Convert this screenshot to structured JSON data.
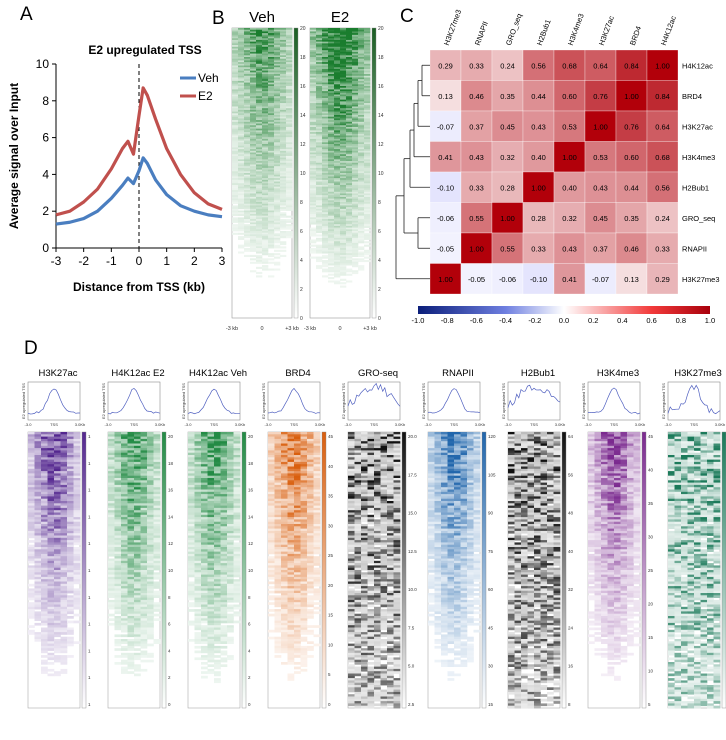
{
  "panels": {
    "a": "A",
    "b": "B",
    "c": "C",
    "d": "D"
  },
  "colors": {
    "veh": "#4a7ec0",
    "e2": "#c0504d"
  },
  "chart_data": [
    {
      "type": "line",
      "panel": "A",
      "title": "E2 upregulated TSS",
      "xlabel": "Distance from TSS (kb)",
      "ylabel": "Average signal over Input",
      "xlim": [
        -3,
        3
      ],
      "ylim": [
        0,
        10
      ],
      "xticks": [
        "-3",
        "-2",
        "-1",
        "0",
        "1",
        "2",
        "3"
      ],
      "yticks": [
        "0",
        "2",
        "4",
        "6",
        "8",
        "10"
      ],
      "x": [
        -3,
        -2.5,
        -2,
        -1.5,
        -1,
        -0.6,
        -0.4,
        -0.2,
        0,
        0.15,
        0.3,
        0.6,
        1,
        1.5,
        2,
        2.5,
        3
      ],
      "series": [
        {
          "name": "Veh",
          "color": "#4a7ec0",
          "values": [
            1.3,
            1.4,
            1.6,
            2.0,
            2.7,
            3.4,
            3.8,
            3.5,
            4.2,
            4.9,
            4.6,
            3.7,
            2.9,
            2.3,
            2.0,
            1.8,
            1.7
          ]
        },
        {
          "name": "E2",
          "color": "#c0504d",
          "values": [
            1.8,
            2.0,
            2.5,
            3.2,
            4.3,
            5.4,
            5.8,
            5.1,
            7.2,
            8.7,
            8.3,
            7.0,
            5.4,
            4.0,
            3.0,
            2.4,
            2.1
          ]
        }
      ],
      "legend": "top-right"
    },
    {
      "type": "heatmap",
      "panel": "B",
      "columns": [
        "Veh",
        "E2"
      ],
      "colorbar_ticks": [
        "20",
        "18",
        "16",
        "14",
        "12",
        "10",
        "8",
        "6",
        "4",
        "2",
        "0"
      ],
      "xticks": [
        "-3 kb",
        "0",
        "+3 kb"
      ]
    },
    {
      "type": "heatmap",
      "panel": "C",
      "columns": [
        "H3K27me3",
        "RNAPII",
        "GRO_seq",
        "H2Bub1",
        "H3K4me3",
        "H3K27ac",
        "BRD4",
        "H4K12ac"
      ],
      "rows": [
        "H4K12ac",
        "BRD4",
        "H3K27ac",
        "H3K4me3",
        "H2Bub1",
        "GRO_seq",
        "RNAPII",
        "H3K27me3"
      ],
      "values": [
        [
          0.29,
          0.33,
          0.24,
          0.56,
          0.68,
          0.64,
          0.84,
          1.0
        ],
        [
          0.13,
          0.46,
          0.35,
          0.44,
          0.6,
          0.76,
          1.0,
          0.84
        ],
        [
          -0.07,
          0.37,
          0.45,
          0.43,
          0.53,
          1.0,
          0.76,
          0.64
        ],
        [
          0.41,
          0.43,
          0.32,
          0.4,
          1.0,
          0.53,
          0.6,
          0.68
        ],
        [
          -0.1,
          0.33,
          0.28,
          1.0,
          0.4,
          0.43,
          0.44,
          0.56
        ],
        [
          -0.06,
          0.55,
          1.0,
          0.28,
          0.32,
          0.45,
          0.35,
          0.24
        ],
        [
          -0.05,
          1.0,
          0.55,
          0.33,
          0.43,
          0.37,
          0.46,
          0.33
        ],
        [
          1.0,
          -0.05,
          -0.06,
          -0.1,
          0.41,
          -0.07,
          0.13,
          0.29
        ]
      ],
      "colorbar_ticks": [
        "-1.0",
        "-0.8",
        "-0.6",
        "-0.4",
        "-0.2",
        "0.0",
        "0.2",
        "0.4",
        "0.6",
        "0.8",
        "1.0"
      ],
      "vmin": -1,
      "vmax": 1
    },
    {
      "type": "heatmap",
      "panel": "D",
      "profile_ylabel": "E2 upregulated TSS",
      "profile_xticks": [
        "-3.0",
        "TSS",
        "3.0Kb"
      ],
      "tracks": [
        {
          "title": "H3K27ac",
          "color": "#54278f",
          "cb_ticks": [
            "1",
            "1",
            "1",
            "1",
            "1",
            "1",
            "1",
            "1",
            "1",
            "1",
            "1"
          ]
        },
        {
          "title": "H4K12ac E2",
          "color": "#238b45",
          "cb_ticks": [
            "20",
            "18",
            "16",
            "14",
            "12",
            "10",
            "8",
            "6",
            "4",
            "2",
            "0"
          ]
        },
        {
          "title": "H4K12ac Veh",
          "color": "#238b45",
          "cb_ticks": [
            "20",
            "18",
            "16",
            "14",
            "12",
            "10",
            "8",
            "6",
            "4",
            "2",
            "0"
          ]
        },
        {
          "title": "BRD4",
          "color": "#d95f0e",
          "cb_ticks": [
            "45",
            "40",
            "35",
            "30",
            "25",
            "20",
            "15",
            "10",
            "5",
            "0"
          ]
        },
        {
          "title": "GRO-seq",
          "color": "#111111",
          "cb_ticks": [
            "20.0",
            "17.5",
            "15.0",
            "12.5",
            "10.0",
            "7.5",
            "5.0",
            "2.5"
          ]
        },
        {
          "title": "RNAPII",
          "color": "#2166ac",
          "cb_ticks": [
            "120",
            "105",
            "90",
            "75",
            "60",
            "45",
            "30",
            "15"
          ]
        },
        {
          "title": "H2Bub1",
          "color": "#111111",
          "cb_ticks": [
            "64",
            "56",
            "48",
            "40",
            "32",
            "24",
            "16",
            "8"
          ]
        },
        {
          "title": "H3K4me3",
          "color": "#7b2a8f",
          "cb_ticks": [
            "45",
            "40",
            "35",
            "30",
            "25",
            "20",
            "15",
            "10",
            "5"
          ]
        },
        {
          "title": "H3K27me3",
          "color": "#1b7a5a",
          "cb_ticks": [
            "6.4",
            "5.6",
            "4.8",
            "4.0",
            "3.2",
            "2.4",
            "1.6",
            "0.8"
          ]
        }
      ]
    }
  ]
}
